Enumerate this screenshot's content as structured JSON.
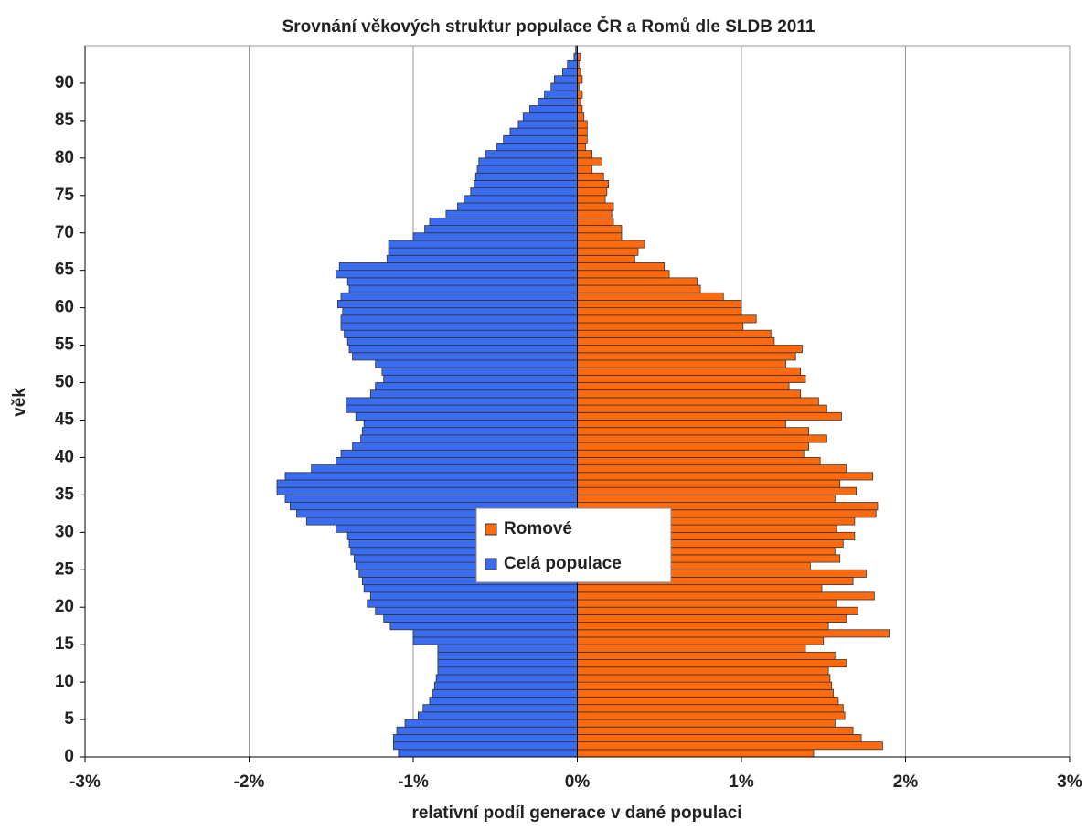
{
  "chart_data": {
    "type": "pyramid",
    "title": "Srovnání věkových struktur populace ČR a Romů dle SLDB 2011",
    "x_label": "relativní podíl generace v dané populaci",
    "y_label": "věk",
    "xlim": [
      -3,
      3
    ],
    "xticks": [
      {
        "value": -3,
        "label": "-3%"
      },
      {
        "value": -2,
        "label": "-2%"
      },
      {
        "value": -1,
        "label": "-1%"
      },
      {
        "value": 0,
        "label": "0%"
      },
      {
        "value": 1,
        "label": "1%"
      },
      {
        "value": 2,
        "label": "2%"
      },
      {
        "value": 3,
        "label": "3%"
      }
    ],
    "ylim": [
      0,
      95
    ],
    "yticks": [
      0,
      5,
      10,
      15,
      20,
      25,
      30,
      35,
      40,
      45,
      50,
      55,
      60,
      65,
      70,
      75,
      80,
      85,
      90
    ],
    "grid": true,
    "legend": "center",
    "y": [
      0,
      1,
      2,
      3,
      4,
      5,
      6,
      7,
      8,
      9,
      10,
      11,
      12,
      13,
      14,
      15,
      16,
      17,
      18,
      19,
      20,
      21,
      22,
      23,
      24,
      25,
      26,
      27,
      28,
      29,
      30,
      31,
      32,
      33,
      34,
      35,
      36,
      37,
      38,
      39,
      40,
      41,
      42,
      43,
      44,
      45,
      46,
      47,
      48,
      49,
      50,
      51,
      52,
      53,
      54,
      55,
      56,
      57,
      58,
      59,
      60,
      61,
      62,
      63,
      64,
      65,
      66,
      67,
      68,
      69,
      70,
      71,
      72,
      73,
      74,
      75,
      76,
      77,
      78,
      79,
      80,
      81,
      82,
      83,
      84,
      85,
      86,
      87,
      88,
      89,
      90,
      91,
      92,
      93,
      94
    ],
    "series": [
      {
        "name": "Romové",
        "color": "#ff6a0f",
        "values": [
          1.44,
          1.86,
          1.73,
          1.68,
          1.57,
          1.63,
          1.62,
          1.59,
          1.56,
          1.55,
          1.54,
          1.53,
          1.64,
          1.57,
          1.39,
          1.5,
          1.9,
          1.53,
          1.64,
          1.71,
          1.58,
          1.81,
          1.49,
          1.68,
          1.76,
          1.42,
          1.6,
          1.57,
          1.62,
          1.69,
          1.58,
          1.69,
          1.82,
          1.83,
          1.57,
          1.7,
          1.6,
          1.8,
          1.64,
          1.48,
          1.38,
          1.41,
          1.52,
          1.41,
          1.27,
          1.61,
          1.52,
          1.47,
          1.36,
          1.29,
          1.39,
          1.36,
          1.27,
          1.33,
          1.37,
          1.2,
          1.18,
          1.01,
          1.09,
          1.0,
          1.0,
          0.89,
          0.75,
          0.73,
          0.56,
          0.53,
          0.35,
          0.37,
          0.41,
          0.27,
          0.27,
          0.22,
          0.21,
          0.22,
          0.17,
          0.18,
          0.19,
          0.16,
          0.09,
          0.15,
          0.09,
          0.05,
          0.06,
          0.06,
          0.06,
          0.04,
          0.03,
          0.02,
          0.03,
          0.01,
          0.03,
          0.02,
          0.01,
          0.02,
          0.0
        ]
      },
      {
        "name": "Celá populace",
        "color": "#3a6cf2",
        "values": [
          -1.09,
          -1.12,
          -1.12,
          -1.1,
          -1.05,
          -0.97,
          -0.94,
          -0.9,
          -0.88,
          -0.87,
          -0.86,
          -0.85,
          -0.85,
          -0.85,
          -0.85,
          -1.0,
          -1.0,
          -1.14,
          -1.18,
          -1.23,
          -1.28,
          -1.26,
          -1.3,
          -1.31,
          -1.33,
          -1.35,
          -1.36,
          -1.38,
          -1.39,
          -1.4,
          -1.47,
          -1.65,
          -1.71,
          -1.75,
          -1.78,
          -1.83,
          -1.83,
          -1.78,
          -1.62,
          -1.47,
          -1.44,
          -1.37,
          -1.32,
          -1.31,
          -1.3,
          -1.35,
          -1.41,
          -1.41,
          -1.26,
          -1.23,
          -1.18,
          -1.19,
          -1.23,
          -1.37,
          -1.39,
          -1.4,
          -1.42,
          -1.44,
          -1.44,
          -1.43,
          -1.46,
          -1.44,
          -1.39,
          -1.4,
          -1.47,
          -1.45,
          -1.16,
          -1.15,
          -1.15,
          -1.0,
          -0.93,
          -0.9,
          -0.8,
          -0.73,
          -0.69,
          -0.65,
          -0.63,
          -0.62,
          -0.61,
          -0.6,
          -0.56,
          -0.49,
          -0.45,
          -0.41,
          -0.36,
          -0.33,
          -0.29,
          -0.24,
          -0.2,
          -0.16,
          -0.14,
          -0.09,
          -0.06,
          -0.02,
          -0.01
        ]
      }
    ]
  }
}
